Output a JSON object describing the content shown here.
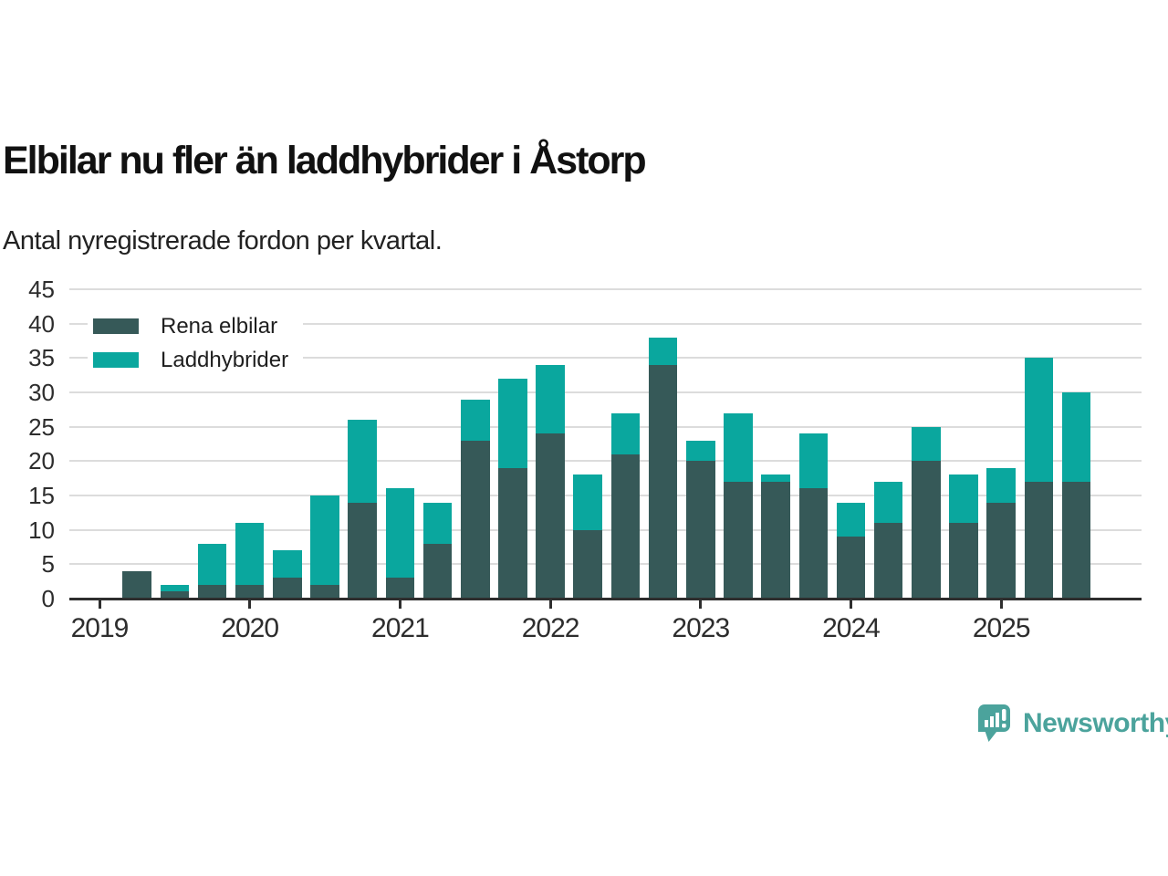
{
  "header": {
    "title": "Elbilar nu fler än laddhybrider i Åstorp",
    "subtitle": "Antal nyregistrerade fordon per kvartal."
  },
  "legend": {
    "items": [
      {
        "label": "Rena elbilar",
        "color": "#365958"
      },
      {
        "label": "Laddhybrider",
        "color": "#0aa79e"
      }
    ]
  },
  "chart_data": {
    "type": "bar",
    "stacked": true,
    "title": "Elbilar nu fler än laddhybrider i Åstorp",
    "subtitle": "Antal nyregistrerade fordon per kvartal.",
    "categories": [
      "2019 Q2",
      "2019 Q3",
      "2019 Q4",
      "2020 Q1",
      "2020 Q2",
      "2020 Q3",
      "2020 Q4",
      "2021 Q1",
      "2021 Q2",
      "2021 Q3",
      "2021 Q4",
      "2022 Q1",
      "2022 Q2",
      "2022 Q3",
      "2022 Q4",
      "2023 Q1",
      "2023 Q2",
      "2023 Q3",
      "2023 Q4",
      "2024 Q1",
      "2024 Q2",
      "2024 Q3",
      "2024 Q4",
      "2025 Q1",
      "2025 Q2",
      "2025 Q3"
    ],
    "series": [
      {
        "name": "Rena elbilar",
        "color": "#365958",
        "values": [
          4,
          1,
          2,
          2,
          3,
          2,
          14,
          3,
          8,
          23,
          19,
          24,
          10,
          21,
          34,
          20,
          17,
          17,
          16,
          9,
          11,
          20,
          11,
          14,
          17,
          17
        ]
      },
      {
        "name": "Laddhybrider",
        "color": "#0aa79e",
        "values": [
          0,
          1,
          6,
          9,
          4,
          13,
          12,
          13,
          6,
          6,
          13,
          10,
          8,
          6,
          4,
          3,
          10,
          1,
          8,
          5,
          6,
          5,
          7,
          5,
          18,
          13
        ]
      }
    ],
    "totals": [
      4,
      2,
      8,
      11,
      7,
      15,
      26,
      16,
      14,
      29,
      32,
      34,
      18,
      27,
      38,
      23,
      27,
      18,
      24,
      14,
      17,
      25,
      18,
      19,
      35,
      30
    ],
    "xticks": [
      "2019",
      "2020",
      "2021",
      "2022",
      "2023",
      "2024",
      "2025"
    ],
    "yticks": [
      0,
      5,
      10,
      15,
      20,
      25,
      30,
      35,
      40,
      45
    ],
    "ylim": [
      0,
      45
    ],
    "grid": true,
    "legend_position": "top-left"
  },
  "footer": {
    "brand": "Newsworthy",
    "logo": "newsworthy-logo",
    "brand_color": "#4ba39c"
  },
  "colors": {
    "axis": "#2e2e2e",
    "gridline": "#dcdcdc"
  }
}
